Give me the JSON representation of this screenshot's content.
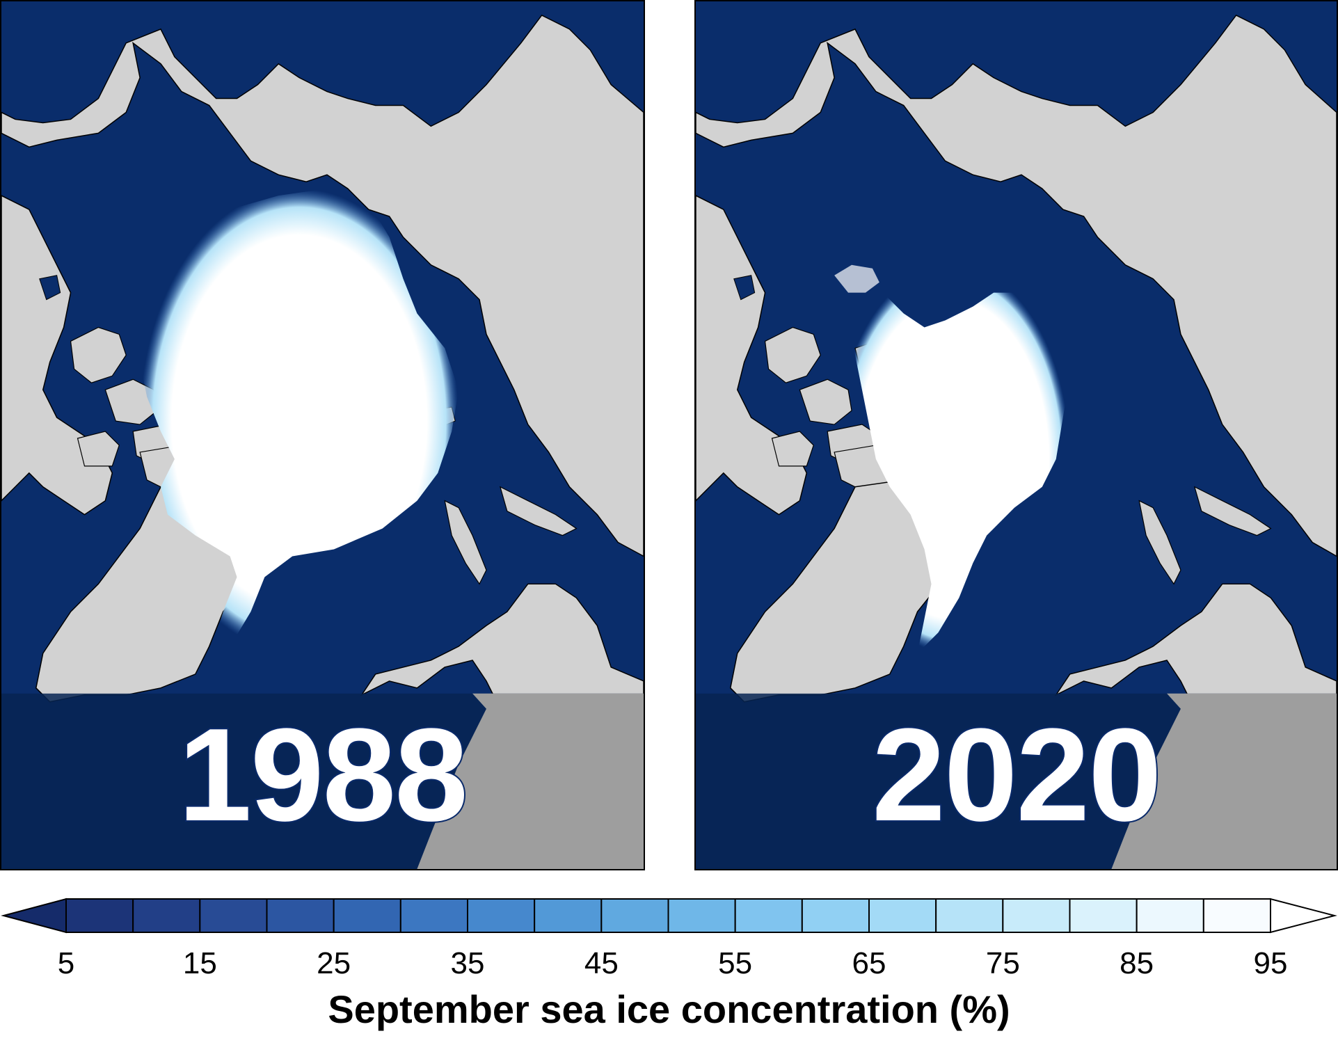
{
  "panels": [
    {
      "year": "1988"
    },
    {
      "year": "2020"
    }
  ],
  "colors": {
    "ocean": "#0a2d6b",
    "land": "#d2d2d2",
    "ice": "#ffffff",
    "dark_overlay": "#072452",
    "land_shade": "#9e9e9e",
    "coastline": "#000000"
  },
  "colorbar": {
    "title": "September sea ice concentration (%)",
    "tick_labels": [
      "5",
      "15",
      "25",
      "35",
      "45",
      "55",
      "65",
      "75",
      "85",
      "95"
    ],
    "levels": [
      5,
      10,
      15,
      20,
      25,
      30,
      35,
      40,
      45,
      50,
      55,
      60,
      65,
      70,
      75,
      80,
      85,
      90,
      95
    ],
    "colors": [
      "#152b6a",
      "#1c3478",
      "#223f87",
      "#284b95",
      "#2c56a2",
      "#3266b2",
      "#3c77c1",
      "#4688cd",
      "#5299d7",
      "#60a9e0",
      "#6fb7e8",
      "#80c4ef",
      "#91d0f3",
      "#a3daf6",
      "#b6e3f8",
      "#c8ebfa",
      "#daf2fc",
      "#ecf8fe",
      "#f8fcff",
      "#ffffff"
    ]
  }
}
